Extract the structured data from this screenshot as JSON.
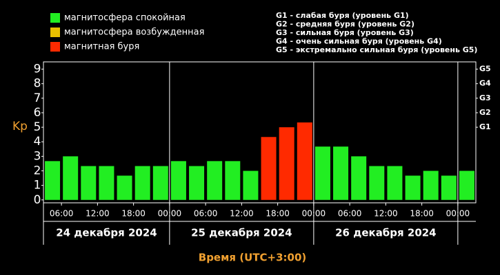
{
  "chart_data": {
    "type": "bar",
    "ylabel": "Kp",
    "xlabel": "Время (UTC+3:00)",
    "legend": [
      {
        "name": "магнитосфера спокойная",
        "color": "#22ee22"
      },
      {
        "name": "магнитосфера возбужденная",
        "color": "#e8c000"
      },
      {
        "name": "магнитная буря",
        "color": "#ff2a00"
      }
    ],
    "storm_legend": [
      "G1 - слабая буря (уровень G1)",
      "G2 - средняя буря (уровень G2)",
      "G3 - сильная буря (уровень G3)",
      "G4 - очень сильная буря (уровень G4)",
      "G5 - экстремально сильная буря (уровень G5)"
    ],
    "values": [
      2.67,
      3.0,
      2.33,
      2.33,
      1.67,
      2.33,
      2.33,
      2.67,
      2.33,
      2.67,
      2.67,
      2.0,
      4.33,
      5.0,
      5.33,
      3.67,
      3.67,
      3.0,
      2.33,
      2.33,
      1.67,
      2.0,
      1.67,
      2.0
    ],
    "colors": [
      "#22ee22",
      "#22ee22",
      "#22ee22",
      "#22ee22",
      "#22ee22",
      "#22ee22",
      "#22ee22",
      "#22ee22",
      "#22ee22",
      "#22ee22",
      "#22ee22",
      "#22ee22",
      "#ff2a00",
      "#ff2a00",
      "#ff2a00",
      "#22ee22",
      "#22ee22",
      "#22ee22",
      "#22ee22",
      "#22ee22",
      "#22ee22",
      "#22ee22",
      "#22ee22",
      "#22ee22"
    ],
    "ylim": [
      -0.2,
      9.5
    ],
    "yticks": [
      0,
      1,
      2,
      3,
      4,
      5,
      6,
      7,
      8,
      9
    ],
    "y2ticks": [
      {
        "value": 5,
        "label": "G1"
      },
      {
        "value": 6,
        "label": "G2"
      },
      {
        "value": 7,
        "label": "G3"
      },
      {
        "value": 8,
        "label": "G4"
      },
      {
        "value": 9,
        "label": "G5"
      }
    ],
    "xlim": [
      0,
      24
    ],
    "xticks": [
      {
        "value": 1,
        "label": "06:00"
      },
      {
        "value": 3,
        "label": "12:00"
      },
      {
        "value": 5,
        "label": "18:00"
      },
      {
        "value": 7,
        "label": "00:00"
      },
      {
        "value": 9,
        "label": "06:00"
      },
      {
        "value": 11,
        "label": "12:00"
      },
      {
        "value": 13,
        "label": "18:00"
      },
      {
        "value": 15,
        "label": "00:00"
      },
      {
        "value": 17,
        "label": "06:00"
      },
      {
        "value": 19,
        "label": "12:00"
      },
      {
        "value": 21,
        "label": "18:00"
      },
      {
        "value": 23,
        "label": "00:00"
      }
    ],
    "days": [
      {
        "start": 0,
        "end": 7,
        "label": "24 декабря 2024"
      },
      {
        "start": 7,
        "end": 15,
        "label": "25 декабря 2024"
      },
      {
        "start": 15,
        "end": 23,
        "label": "26 декабря 2024"
      }
    ]
  }
}
